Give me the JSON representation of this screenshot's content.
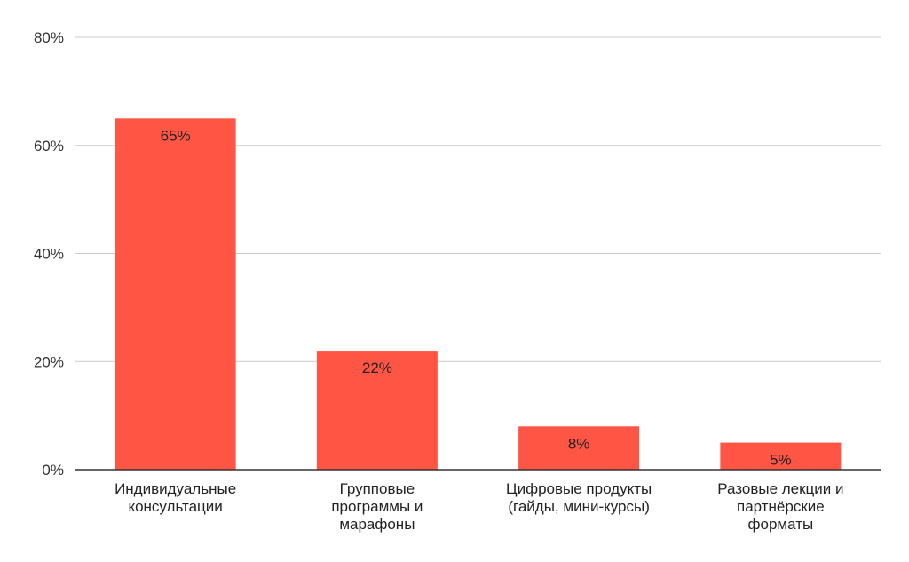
{
  "chart_data": {
    "type": "bar",
    "categories": [
      [
        "Индивидуальные",
        "консультации"
      ],
      [
        "Групповые",
        "программы и",
        "марафоны"
      ],
      [
        "Цифровые продукты",
        "(гайды, мини-курсы)"
      ],
      [
        "Разовые лекции и",
        "партнёрские",
        "форматы"
      ]
    ],
    "values": [
      65,
      22,
      8,
      5
    ],
    "data_labels": [
      "65%",
      "22%",
      "8%",
      "5%"
    ],
    "yticks": [
      0,
      20,
      40,
      60,
      80
    ],
    "ytick_labels": [
      "0%",
      "20%",
      "40%",
      "60%",
      "80%"
    ],
    "ylim": [
      0,
      80
    ],
    "grid": true,
    "bar_color": "#ff5544",
    "grid_color": "#cccccc",
    "axis_color": "#333333"
  }
}
